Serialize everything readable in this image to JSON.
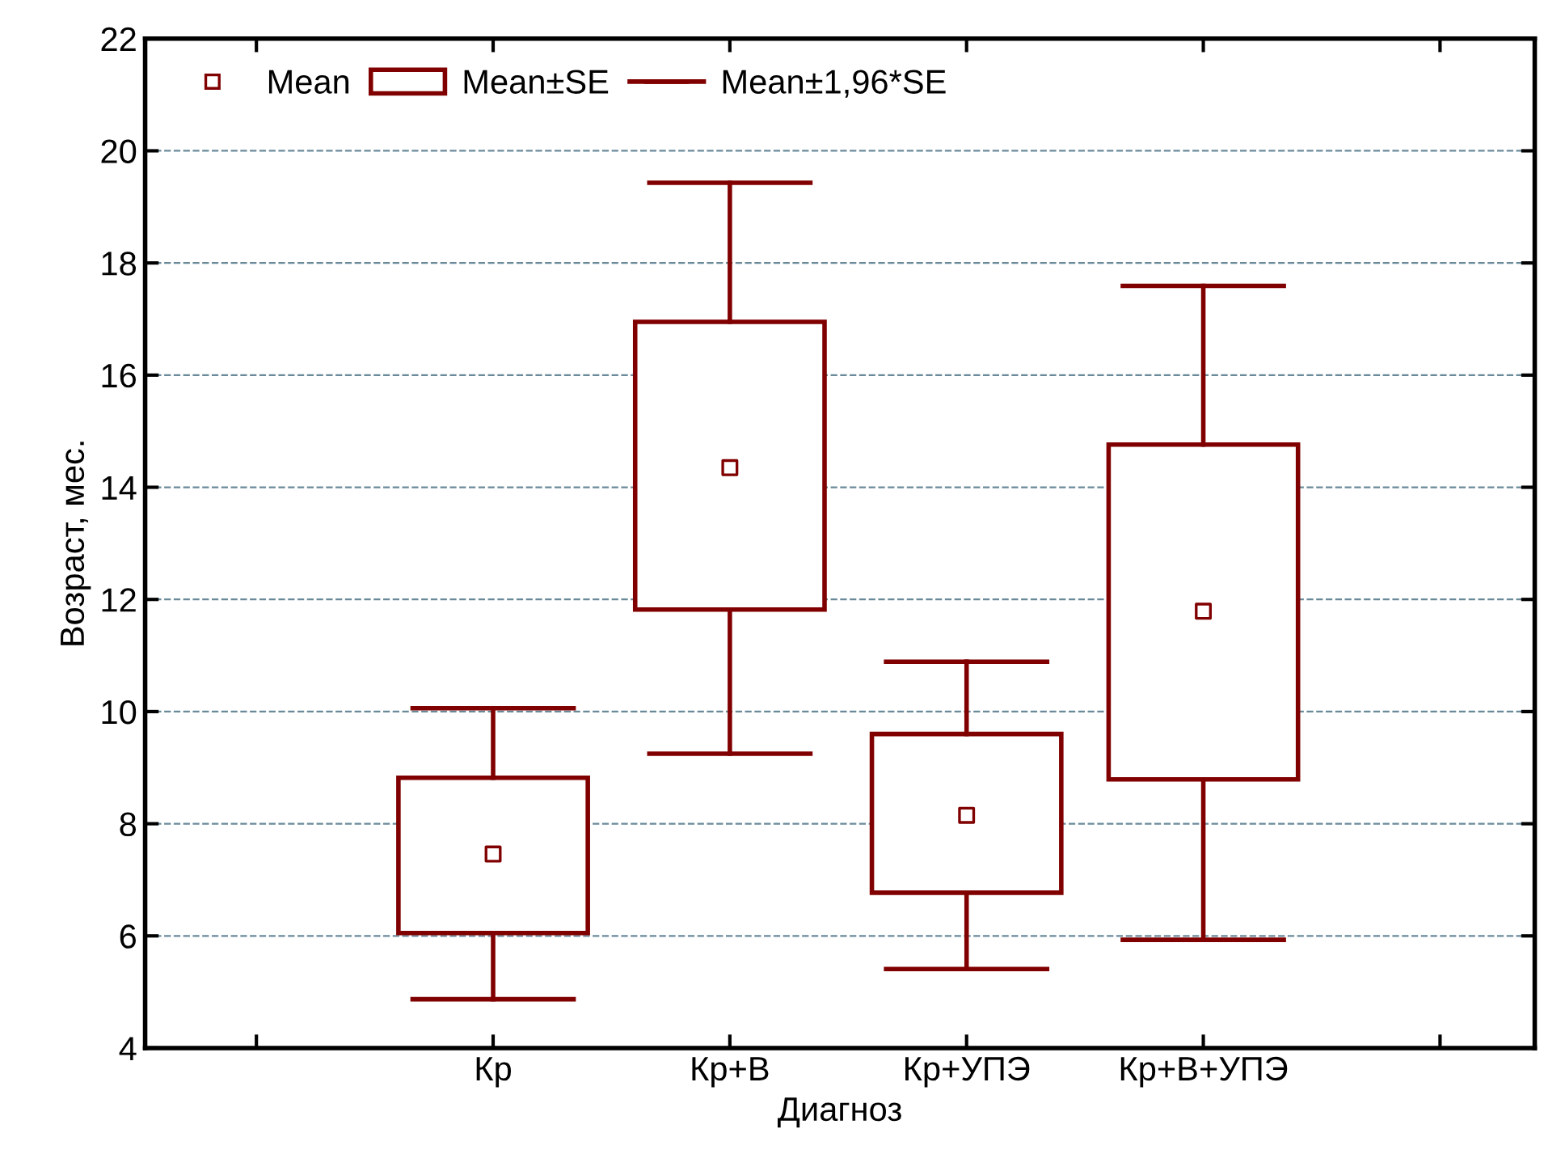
{
  "chart_data": {
    "type": "box",
    "xlabel": "Диагноз",
    "ylabel": "Возраст, мес.",
    "categories": [
      null,
      "Кр",
      "Кр+В",
      "Кр+УПЭ",
      "Кр+В+УПЭ",
      null
    ],
    "series": [
      {
        "name": "Mean",
        "type": "scatter",
        "marker": "square",
        "color": "#800000",
        "values": [
          null,
          null,
          null,
          null,
          null,
          null
        ]
      },
      {
        "name": "Mean±SE",
        "color": "#800000",
        "boxes": [
          null,
          {
            "low": 4.87,
            "q1": 6.05,
            "median": 7.46,
            "q3": 8.82,
            "high": 10.06
          },
          {
            "low": 9.25,
            "q1": 11.82,
            "median": 14.35,
            "q3": 16.95,
            "high": 19.43
          },
          {
            "low": 5.41,
            "q1": 6.77,
            "median": 8.15,
            "q3": 9.6,
            "high": 10.89
          },
          {
            "low": 5.93,
            "q1": 8.79,
            "median": 11.79,
            "q3": 14.76,
            "high": 17.59
          },
          null
        ]
      },
      {
        "name": "Mean±1,96*SE",
        "type": "scatter",
        "marker": "none",
        "color": "#800000",
        "values": [
          null,
          null,
          null,
          null,
          null,
          null
        ]
      }
    ],
    "ylim": [
      4,
      22
    ],
    "yticks": [
      4,
      6,
      8,
      10,
      12,
      14,
      16,
      18,
      20,
      22
    ],
    "grid": "y",
    "legend": "top left"
  }
}
